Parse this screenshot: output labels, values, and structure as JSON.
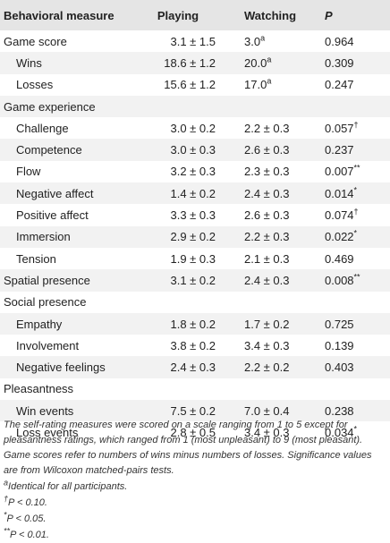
{
  "table": {
    "headers": {
      "measure": "Behavioral measure",
      "playing": "Playing",
      "watching": "Watching",
      "p": "P"
    },
    "rows": [
      {
        "label": "Game score",
        "sub": false,
        "playing": "3.1 ± 1.5",
        "watching": "3.0",
        "wsup": "a",
        "p": "0.964",
        "psup": ""
      },
      {
        "label": "Wins",
        "sub": true,
        "playing": "18.6 ± 1.2",
        "watching": "20.0",
        "wsup": "a",
        "p": "0.309",
        "psup": ""
      },
      {
        "label": "Losses",
        "sub": true,
        "playing": "15.6 ± 1.2",
        "watching": "17.0",
        "wsup": "a",
        "p": "0.247",
        "psup": ""
      },
      {
        "label": "Game experience",
        "sub": false,
        "playing": "",
        "watching": "",
        "wsup": "",
        "p": "",
        "psup": ""
      },
      {
        "label": "Challenge",
        "sub": true,
        "playing": "3.0 ± 0.2",
        "watching": "2.2 ± 0.3",
        "wsup": "",
        "p": "0.057",
        "psup": "†"
      },
      {
        "label": "Competence",
        "sub": true,
        "playing": "3.0 ± 0.3",
        "watching": "2.6 ± 0.3",
        "wsup": "",
        "p": "0.237",
        "psup": ""
      },
      {
        "label": "Flow",
        "sub": true,
        "playing": "3.2 ± 0.3",
        "watching": "2.3 ± 0.3",
        "wsup": "",
        "p": "0.007",
        "psup": "**"
      },
      {
        "label": "Negative affect",
        "sub": true,
        "playing": "1.4 ± 0.2",
        "watching": "2.4 ± 0.3",
        "wsup": "",
        "p": "0.014",
        "psup": "*"
      },
      {
        "label": "Positive affect",
        "sub": true,
        "playing": "3.3 ± 0.3",
        "watching": "2.6 ± 0.3",
        "wsup": "",
        "p": "0.074",
        "psup": "†"
      },
      {
        "label": "Immersion",
        "sub": true,
        "playing": "2.9 ± 0.2",
        "watching": "2.2 ± 0.3",
        "wsup": "",
        "p": "0.022",
        "psup": "*"
      },
      {
        "label": "Tension",
        "sub": true,
        "playing": "1.9 ± 0.3",
        "watching": "2.1 ± 0.3",
        "wsup": "",
        "p": "0.469",
        "psup": ""
      },
      {
        "label": "Spatial presence",
        "sub": false,
        "playing": "3.1 ± 0.2",
        "watching": "2.4 ± 0.3",
        "wsup": "",
        "p": "0.008",
        "psup": "**"
      },
      {
        "label": "Social presence",
        "sub": false,
        "playing": "",
        "watching": "",
        "wsup": "",
        "p": "",
        "psup": ""
      },
      {
        "label": "Empathy",
        "sub": true,
        "playing": "1.8 ± 0.2",
        "watching": "1.7 ± 0.2",
        "wsup": "",
        "p": "0.725",
        "psup": ""
      },
      {
        "label": "Involvement",
        "sub": true,
        "playing": "3.8 ± 0.2",
        "watching": "3.4 ± 0.3",
        "wsup": "",
        "p": "0.139",
        "psup": ""
      },
      {
        "label": "Negative feelings",
        "sub": true,
        "playing": "2.4 ± 0.3",
        "watching": "2.2 ± 0.2",
        "wsup": "",
        "p": "0.403",
        "psup": ""
      },
      {
        "label": "Pleasantness",
        "sub": false,
        "playing": "",
        "watching": "",
        "wsup": "",
        "p": "",
        "psup": ""
      },
      {
        "label": "Win events",
        "sub": true,
        "playing": "7.5 ± 0.2",
        "watching": "7.0 ± 0.4",
        "wsup": "",
        "p": "0.238",
        "psup": ""
      },
      {
        "label": "Loss events",
        "sub": true,
        "playing": "2.8 ± 0.5",
        "watching": "3.4 ± 0.3",
        "wsup": "",
        "p": "0.034",
        "psup": "*"
      }
    ]
  },
  "footnotes": {
    "description": "The self-rating measures were scored on a scale ranging from 1 to 5 except for pleasantness ratings, which ranged from 1 (most unpleasant) to 9 (most pleasant). Game scores refer to numbers of wins minus numbers of losses. Significance values are from Wilcoxon matched-pairs tests.",
    "note_a": {
      "mark": "a",
      "text": "Identical for all participants."
    },
    "note_dagger": {
      "mark": "†",
      "text": "P < 0.10."
    },
    "note_star": {
      "mark": "*",
      "text": "P < 0.05."
    },
    "note_dstar": {
      "mark": "**",
      "text": "P < 0.01."
    }
  }
}
